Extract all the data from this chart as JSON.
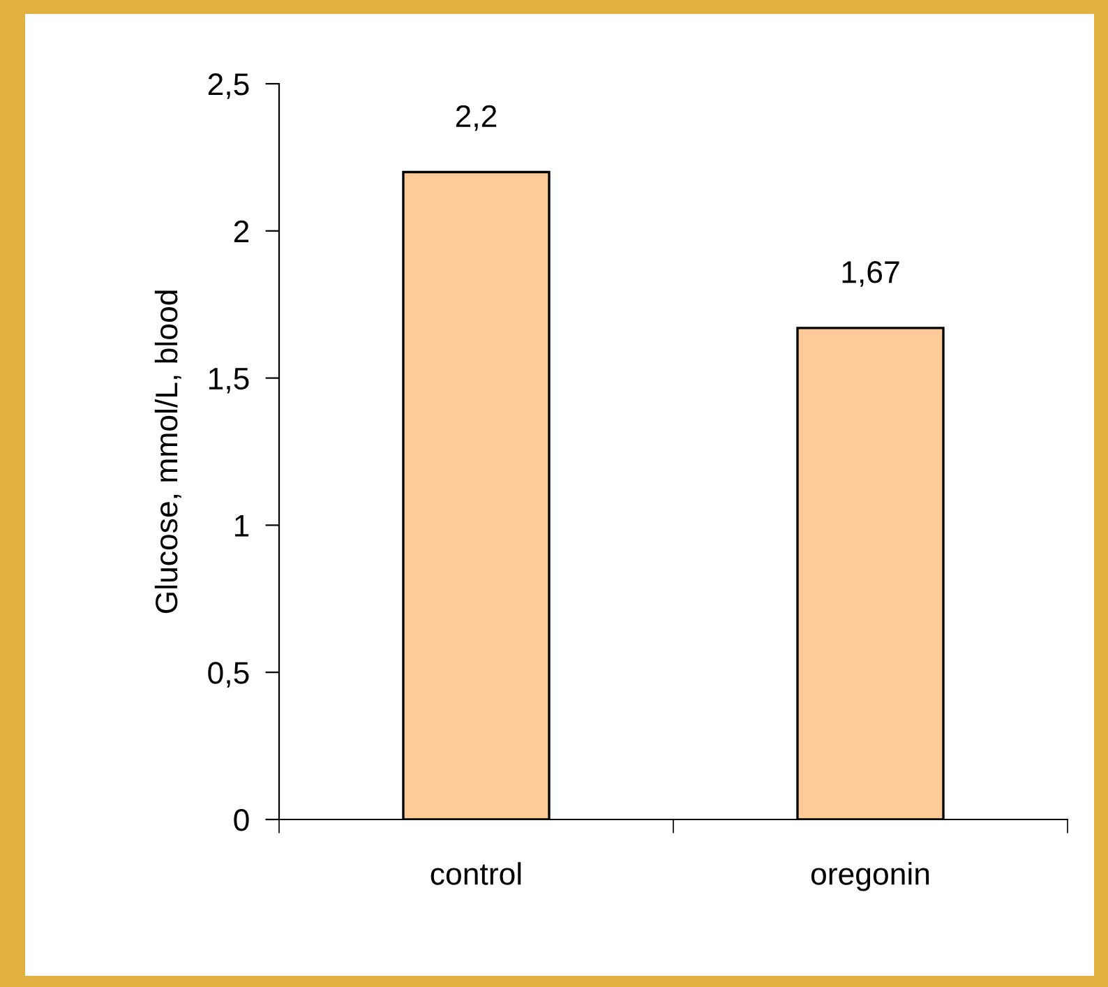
{
  "chart_data": {
    "type": "bar",
    "ylabel": "Glucose, mmol/L, blood",
    "categories": [
      "control",
      "oregonin"
    ],
    "values": [
      2.2,
      1.67
    ],
    "value_labels": [
      "2,2",
      "1,67"
    ],
    "color": "#fdca98",
    "ylim": [
      0,
      2.5
    ],
    "yticks": [
      0,
      {
        "value": 0.5,
        "label": "0,5"
      },
      1,
      {
        "value": 1.5,
        "label": "1,5"
      },
      2,
      {
        "value": 2.5,
        "label": "2,5"
      }
    ],
    "grid": false
  }
}
